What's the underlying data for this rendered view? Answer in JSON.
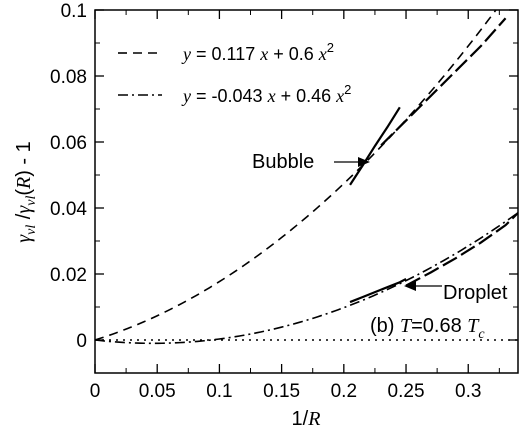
{
  "chart_data": {
    "type": "line",
    "xlabel": "1/R",
    "ylabel": "γvl / γvl(R) - 1",
    "xlim": [
      0,
      0.34
    ],
    "ylim": [
      -0.01,
      0.1
    ],
    "x_ticks": [
      0,
      0.05,
      0.1,
      0.15,
      0.2,
      0.25,
      0.3
    ],
    "x_tick_labels": [
      "0",
      "0.05",
      "0.1",
      "0.15",
      "0.2",
      "0.25",
      "0.3"
    ],
    "y_ticks": [
      0,
      0.02,
      0.04,
      0.06,
      0.08,
      0.1
    ],
    "y_tick_labels": [
      "0",
      "0.02",
      "0.04",
      "0.06",
      "0.08",
      "0.1"
    ],
    "grid": false,
    "legend_position": "top-left",
    "series": [
      {
        "name": "y = 0.117 x + 0.6 x^2",
        "style": "dashed",
        "fit": {
          "a": 0.117,
          "b": 0.6
        },
        "x_range": [
          0,
          0.335
        ]
      },
      {
        "name": "y = -0.043 x + 0.46 x^2",
        "style": "dash-dot",
        "fit": {
          "a": -0.043,
          "b": 0.46
        },
        "x_range": [
          0,
          0.34
        ]
      },
      {
        "label": "Bubble",
        "style": "solid",
        "x": [
          0.205,
          0.215,
          0.225,
          0.235,
          0.245
        ],
        "y": [
          0.047,
          0.0528,
          0.0588,
          0.0645,
          0.0705
        ]
      },
      {
        "label": "Bubble",
        "style": "long-dash",
        "x": [
          0.23,
          0.25,
          0.27,
          0.29,
          0.31,
          0.33
        ],
        "y": [
          0.059,
          0.0665,
          0.074,
          0.0815,
          0.089,
          0.0975
        ]
      },
      {
        "label": "Droplet",
        "style": "solid",
        "x": [
          0.205,
          0.215,
          0.225,
          0.235,
          0.245,
          0.25
        ],
        "y": [
          0.0115,
          0.013,
          0.0145,
          0.016,
          0.0175,
          0.0185
        ]
      },
      {
        "label": "Droplet",
        "style": "long-dash",
        "x": [
          0.25,
          0.27,
          0.29,
          0.31,
          0.33,
          0.34
        ],
        "y": [
          0.0165,
          0.0205,
          0.0248,
          0.0295,
          0.0348,
          0.0385
        ]
      },
      {
        "style": "dotted",
        "x": [
          0,
          0.34
        ],
        "y": [
          0,
          0
        ]
      }
    ],
    "annotations": {
      "bubble": "Bubble",
      "droplet": "Droplet",
      "panel_prefix": "(b) ",
      "panel_var": "T",
      "panel_eq": "=0.68 ",
      "panel_unit": "T",
      "panel_unit_sub": "c"
    },
    "legend": [
      {
        "prefix": "y",
        "mid": " = 0.117 ",
        "x1": "x",
        "plus": " + 0.6 ",
        "x2": "x",
        "exp": "2",
        "style": "dashed"
      },
      {
        "prefix": "y",
        "mid": " = -0.043 ",
        "x1": "x",
        "plus": " + 0.46 ",
        "x2": "x",
        "exp": "2",
        "style": "dash-dot"
      }
    ],
    "axis_title_parts": {
      "x_num": "1/",
      "x_var": "R",
      "y_gamma1": "γ",
      "y_sub1": "vl",
      "y_slash": " /",
      "y_gamma2": "γ",
      "y_sub2": "vl",
      "y_paren_open": "(",
      "y_var": "R",
      "y_paren_close": ") - 1"
    }
  }
}
